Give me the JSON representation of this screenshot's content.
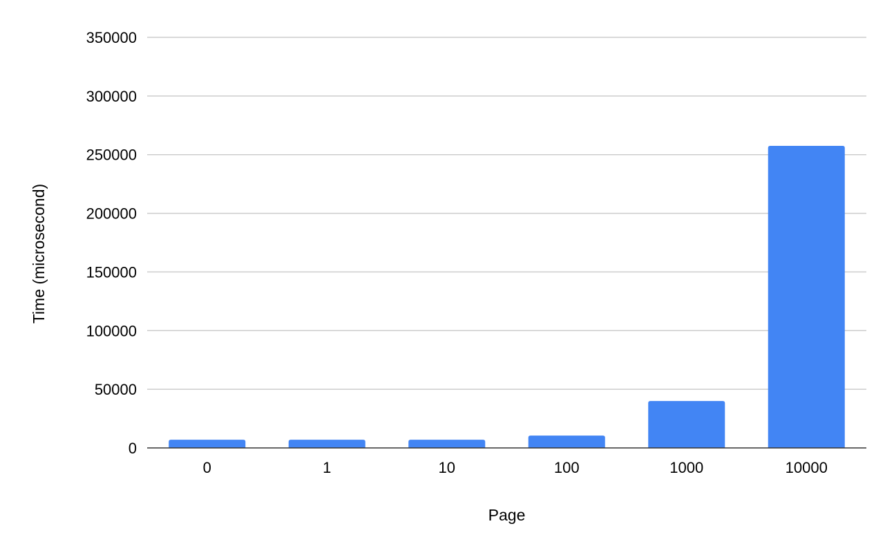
{
  "chart_data": {
    "type": "bar",
    "categories": [
      "0",
      "1",
      "10",
      "100",
      "1000",
      "10000"
    ],
    "values": [
      7000,
      7000,
      7000,
      10500,
      40000,
      257500
    ],
    "title": "",
    "xlabel": "Page",
    "ylabel": "Time (microsecond)",
    "ylim": [
      0,
      350000
    ],
    "yticks": [
      "0",
      "50000",
      "100000",
      "150000",
      "200000",
      "250000",
      "300000",
      "350000"
    ],
    "grid": true,
    "legend": "none",
    "colors": {
      "bar": "#4285f4",
      "grid": "#cccccc",
      "axis": "#333333"
    }
  }
}
